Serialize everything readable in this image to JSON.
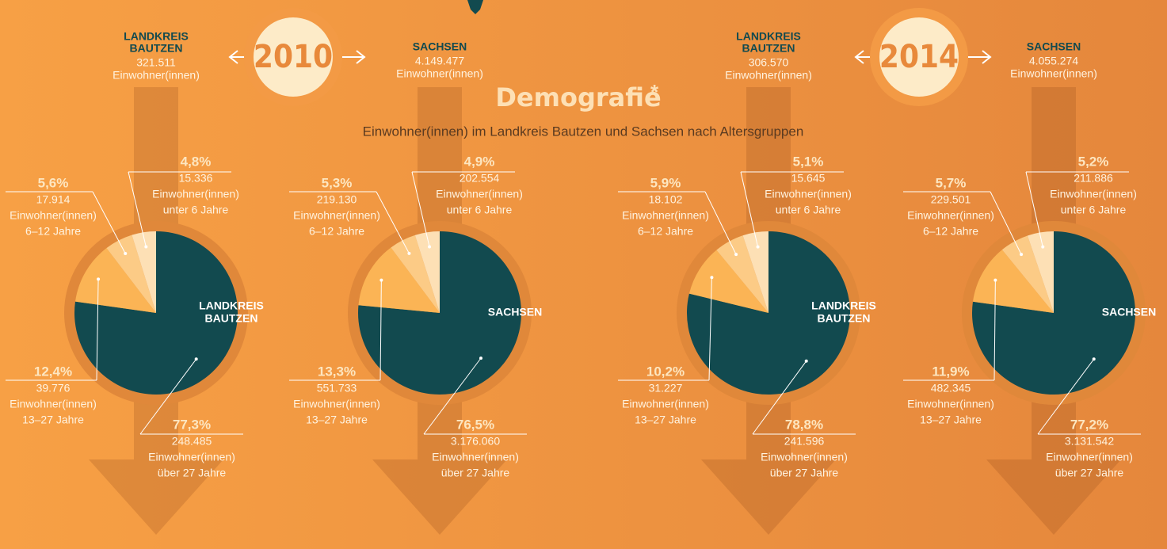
{
  "title": "Demografie",
  "title_mark": "*",
  "subtitle": "Einwohner(innen) im Landkreis Bautzen und Sachsen nach Altersgruppen",
  "headers": [
    {
      "year": "2010",
      "left": {
        "name": [
          "LANDKREIS",
          "BAUTZEN"
        ],
        "total": "321.511",
        "unit": "Einwohner(innen)"
      },
      "right": {
        "name": [
          "SACHSEN"
        ],
        "total": "4.149.477",
        "unit": "Einwohner(innen)"
      }
    },
    {
      "year": "2014",
      "left": {
        "name": [
          "LANDKREIS",
          "BAUTZEN"
        ],
        "total": "306.570",
        "unit": "Einwohner(innen)"
      },
      "right": {
        "name": [
          "SACHSEN"
        ],
        "total": "4.055.274",
        "unit": "Einwohner(innen)"
      }
    }
  ],
  "chart_data": [
    {
      "type": "pie",
      "center_label": [
        "LANDKREIS",
        "BAUTZEN"
      ],
      "categories": [
        "über 27 Jahre",
        "13–27 Jahre",
        "6–12 Jahre",
        "unter 6 Jahre"
      ],
      "values": [
        77.3,
        12.4,
        5.6,
        4.8
      ],
      "value_labels": [
        "77,3%",
        "12,4%",
        "5,6%",
        "4,8%"
      ],
      "counts": [
        "248.485",
        "39.776",
        "17.914",
        "15.336"
      ],
      "unit": "Einwohner(innen)",
      "colors": [
        "#124a4f",
        "#fbb455",
        "#fccb86",
        "#fde0b5"
      ]
    },
    {
      "type": "pie",
      "center_label": [
        "SACHSEN"
      ],
      "categories": [
        "über 27 Jahre",
        "13–27 Jahre",
        "6–12 Jahre",
        "unter 6 Jahre"
      ],
      "values": [
        76.5,
        13.3,
        5.3,
        4.9
      ],
      "value_labels": [
        "76,5%",
        "13,3%",
        "5,3%",
        "4,9%"
      ],
      "counts": [
        "3.176.060",
        "551.733",
        "219.130",
        "202.554"
      ],
      "unit": "Einwohner(innen)",
      "colors": [
        "#124a4f",
        "#fbb455",
        "#fccb86",
        "#fde0b5"
      ]
    },
    {
      "type": "pie",
      "center_label": [
        "LANDKREIS",
        "BAUTZEN"
      ],
      "categories": [
        "über 27 Jahre",
        "13–27 Jahre",
        "6–12 Jahre",
        "unter 6 Jahre"
      ],
      "values": [
        78.8,
        10.2,
        5.9,
        5.1
      ],
      "value_labels": [
        "78,8%",
        "10,2%",
        "5,9%",
        "5,1%"
      ],
      "counts": [
        "241.596",
        "31.227",
        "18.102",
        "15.645"
      ],
      "unit": "Einwohner(innen)",
      "colors": [
        "#124a4f",
        "#fbb455",
        "#fccb86",
        "#fde0b5"
      ]
    },
    {
      "type": "pie",
      "center_label": [
        "SACHSEN"
      ],
      "categories": [
        "über 27 Jahre",
        "13–27 Jahre",
        "6–12 Jahre",
        "unter 6 Jahre"
      ],
      "values": [
        77.2,
        11.9,
        5.7,
        5.2
      ],
      "value_labels": [
        "77,2%",
        "11,9%",
        "5,7%",
        "5,2%"
      ],
      "counts": [
        "3.131.542",
        "482.345",
        "229.501",
        "211.886"
      ],
      "unit": "Einwohner(innen)",
      "colors": [
        "#124a4f",
        "#fbb455",
        "#fccb86",
        "#fde0b5"
      ]
    }
  ]
}
